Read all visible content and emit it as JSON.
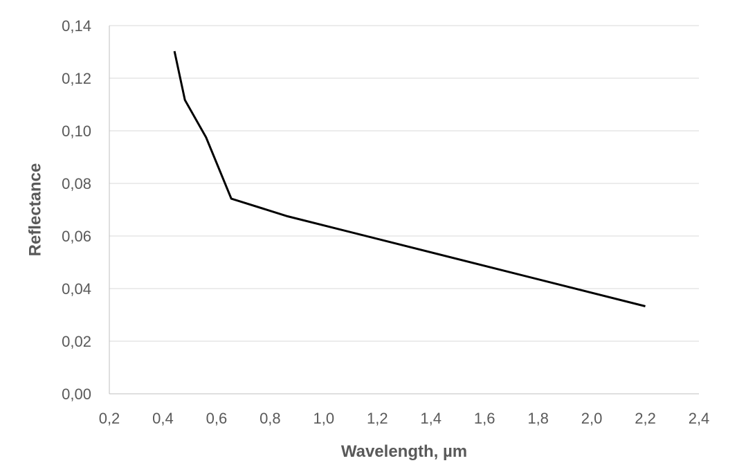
{
  "chart_data": {
    "type": "line",
    "title": "",
    "xlabel": "Wavelength, µm",
    "ylabel": "Reflectance",
    "xlim": [
      0.2,
      2.4
    ],
    "ylim": [
      0,
      0.14
    ],
    "x_ticks": [
      "0,2",
      "0,4",
      "0,6",
      "0,8",
      "1,0",
      "1,2",
      "1,4",
      "1,6",
      "1,8",
      "2,0",
      "2,2",
      "2,4"
    ],
    "y_ticks": [
      "0,00",
      "0,02",
      "0,04",
      "0,06",
      "0,08",
      "0,10",
      "0,12",
      "0,14"
    ],
    "grid": "horizontal",
    "legend": "none",
    "series": [
      {
        "color": "#000000",
        "x": [
          0.443,
          0.482,
          0.561,
          0.655,
          0.865,
          2.2
        ],
        "y": [
          0.1303,
          0.1117,
          0.0975,
          0.0742,
          0.0675,
          0.0333
        ]
      }
    ]
  }
}
